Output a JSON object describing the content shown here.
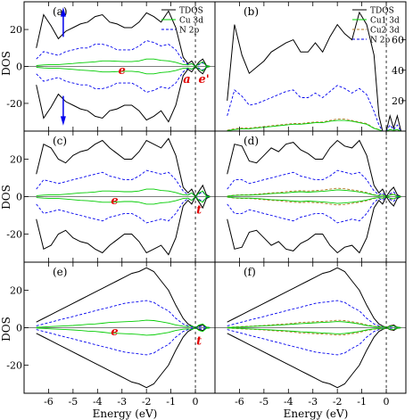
{
  "colors": {
    "tdos": "#000000",
    "cu3d": "#00cc00",
    "np": "#0000ee",
    "cu2": "#b07820",
    "arrow": "#0000ee",
    "label": "#e00000"
  },
  "xlabel": "Energy (eV)",
  "ylabel": "DOS",
  "x_ticks": [
    -6,
    -5,
    -4,
    -3,
    -2,
    -1,
    0
  ],
  "chart_data": [
    {
      "panel": "(a)",
      "type": "line",
      "ylim": [
        -35,
        35
      ],
      "y_ticks": [
        20,
        0,
        -20
      ],
      "y_tick_side": "left",
      "legend": [
        "TDOS",
        "Cu 3d",
        "N 2p"
      ],
      "legend_position": "top-right",
      "x": [
        -6.5,
        -6.2,
        -5.9,
        -5.6,
        -5.3,
        -5.0,
        -4.7,
        -4.4,
        -4.1,
        -3.8,
        -3.5,
        -3.2,
        -2.9,
        -2.6,
        -2.3,
        -2.0,
        -1.7,
        -1.4,
        -1.1,
        -0.8,
        -0.5,
        -0.3,
        -0.15,
        0.0,
        0.15,
        0.3,
        0.45,
        0.6
      ],
      "series": [
        {
          "name": "TDOS",
          "mirror": true,
          "values": [
            10,
            28,
            22,
            15,
            19,
            21,
            23,
            24,
            27,
            28,
            24,
            23,
            21,
            21,
            24,
            29,
            27,
            24,
            30,
            21,
            5,
            1.5,
            3,
            0,
            2.5,
            4,
            0.5,
            0
          ]
        },
        {
          "name": "N 2p",
          "mirror": true,
          "values": [
            4,
            8,
            7,
            6,
            8,
            9,
            10,
            10,
            12,
            12,
            11,
            9,
            9,
            9,
            11,
            14,
            13,
            11,
            12,
            9,
            3,
            1,
            1.5,
            0,
            1,
            2,
            0.3,
            0
          ]
        },
        {
          "name": "Cu 3d",
          "mirror": true,
          "values": [
            0.5,
            0.8,
            1,
            1,
            1.3,
            1.6,
            2,
            2.2,
            2.5,
            3,
            3,
            2.8,
            2.6,
            2.6,
            3,
            4,
            4,
            3.3,
            3,
            2.2,
            1,
            0.8,
            1.5,
            0,
            1.5,
            2.5,
            0.3,
            0
          ]
        }
      ],
      "annotations": [
        "e",
        "a",
        "e'"
      ]
    },
    {
      "panel": "(b)",
      "type": "line",
      "ylim": [
        0,
        85
      ],
      "y_ticks": [
        20,
        40,
        60
      ],
      "y_tick_side": "right",
      "legend": [
        "TDOS",
        "Cu1 3d",
        "Cu2 3d",
        "N 2p"
      ],
      "legend_position": "top-right",
      "x": [
        -6.5,
        -6.2,
        -5.9,
        -5.6,
        -5.3,
        -5.0,
        -4.7,
        -4.4,
        -4.1,
        -3.8,
        -3.5,
        -3.2,
        -2.9,
        -2.6,
        -2.3,
        -2.0,
        -1.7,
        -1.4,
        -1.1,
        -0.8,
        -0.5,
        -0.3,
        -0.15,
        0.0,
        0.15,
        0.3,
        0.45,
        0.6
      ],
      "series": [
        {
          "name": "TDOS",
          "mirror": false,
          "values": [
            20,
            70,
            50,
            38,
            42,
            46,
            52,
            55,
            58,
            60,
            52,
            52,
            58,
            52,
            62,
            70,
            64,
            60,
            78,
            70,
            50,
            10,
            0,
            0,
            10,
            2,
            10,
            0
          ]
        },
        {
          "name": "N 2p",
          "mirror": false,
          "values": [
            10,
            27,
            23,
            17,
            18,
            20,
            22,
            24,
            26,
            27,
            22,
            22,
            25,
            22,
            26,
            30,
            28,
            25,
            28,
            24,
            13,
            4,
            0,
            0,
            4,
            1,
            4,
            0
          ]
        },
        {
          "name": "Cu2 3d",
          "mirror": false,
          "values": [
            0.5,
            1.5,
            2,
            2,
            2.5,
            3,
            3.5,
            4,
            4.5,
            5,
            5,
            5.5,
            6,
            6,
            7,
            8,
            8,
            7,
            6,
            5,
            2,
            1,
            0,
            0,
            1,
            0.5,
            1,
            0
          ]
        },
        {
          "name": "Cu1 3d",
          "mirror": false,
          "values": [
            0.3,
            1,
            1.5,
            1.5,
            2,
            2.5,
            3,
            3.5,
            4,
            4.5,
            4.5,
            5,
            5.5,
            5.5,
            6.5,
            7,
            7,
            6.5,
            5.5,
            4.5,
            1.8,
            0.8,
            0,
            0,
            1,
            0.5,
            1,
            0
          ]
        }
      ]
    },
    {
      "panel": "(c)",
      "type": "line",
      "ylim": [
        -35,
        35
      ],
      "y_ticks": [
        20,
        0,
        -20
      ],
      "y_tick_side": "left",
      "x": [
        -6.5,
        -6.2,
        -5.9,
        -5.6,
        -5.3,
        -5.0,
        -4.7,
        -4.4,
        -4.1,
        -3.8,
        -3.5,
        -3.2,
        -2.9,
        -2.6,
        -2.3,
        -2.0,
        -1.7,
        -1.4,
        -1.1,
        -0.8,
        -0.5,
        -0.3,
        -0.15,
        0.0,
        0.15,
        0.3,
        0.45,
        0.6
      ],
      "series": [
        {
          "name": "TDOS",
          "mirror": true,
          "values": [
            12,
            28,
            26,
            20,
            18,
            22,
            24,
            25,
            28,
            30,
            26,
            23,
            20,
            20,
            24,
            30,
            28,
            26,
            31,
            22,
            5,
            2,
            4,
            0,
            3,
            6,
            1,
            0
          ]
        },
        {
          "name": "N 2p",
          "mirror": true,
          "values": [
            4,
            9,
            8,
            7,
            8,
            9,
            10,
            11,
            12,
            13,
            11,
            10,
            9,
            9,
            11,
            14,
            13,
            12,
            13,
            9,
            3,
            1,
            2,
            0,
            1.5,
            2.5,
            0.5,
            0
          ]
        },
        {
          "name": "Cu 3d",
          "mirror": true,
          "values": [
            0.5,
            0.8,
            1,
            1,
            1.3,
            1.6,
            2,
            2.2,
            2.5,
            3,
            3,
            2.8,
            2.6,
            2.6,
            3,
            4,
            4,
            3.3,
            3,
            2.2,
            1,
            0.8,
            2,
            0,
            2,
            3,
            0.3,
            0
          ]
        }
      ],
      "annotations": [
        "e",
        "t"
      ]
    },
    {
      "panel": "(d)",
      "type": "line",
      "ylim": [
        -35,
        35
      ],
      "x": [
        -6.5,
        -6.2,
        -5.9,
        -5.6,
        -5.3,
        -5.0,
        -4.7,
        -4.4,
        -4.1,
        -3.8,
        -3.5,
        -3.2,
        -2.9,
        -2.6,
        -2.3,
        -2.0,
        -1.7,
        -1.4,
        -1.1,
        -0.8,
        -0.5,
        -0.3,
        -0.15,
        0.0,
        0.15,
        0.3,
        0.45,
        0.6
      ],
      "series": [
        {
          "name": "TDOS",
          "mirror": true,
          "values": [
            12,
            28,
            27,
            19,
            18,
            22,
            26,
            24,
            28,
            29,
            25,
            23,
            20,
            20,
            26,
            30,
            27,
            26,
            30,
            22,
            6,
            2,
            4,
            0,
            3,
            5,
            1,
            0
          ]
        },
        {
          "name": "N 2p",
          "mirror": true,
          "values": [
            4,
            9,
            9,
            7,
            8,
            9,
            10,
            11,
            12,
            13,
            11,
            10,
            9,
            9,
            11,
            14,
            13,
            12,
            13,
            9,
            3,
            1,
            2,
            0,
            1.5,
            2.5,
            0.5,
            0
          ]
        },
        {
          "name": "Cu2 3d",
          "mirror": true,
          "values": [
            0.3,
            0.8,
            1,
            1,
            1.3,
            1.6,
            2,
            2.2,
            2.6,
            3,
            3.2,
            3,
            3.2,
            3.5,
            4,
            4.5,
            4.2,
            3.6,
            3,
            2.2,
            1,
            0.6,
            1,
            0,
            1,
            1.5,
            0.3,
            0
          ]
        },
        {
          "name": "Cu1 3d",
          "mirror": true,
          "values": [
            0.2,
            0.6,
            0.8,
            0.8,
            1,
            1.3,
            1.6,
            1.8,
            2,
            2.4,
            2.6,
            2.4,
            2.6,
            2.8,
            3.2,
            3.6,
            3.4,
            3,
            2.5,
            1.8,
            0.8,
            0.5,
            0.8,
            0,
            0.8,
            1.2,
            0.2,
            0
          ]
        }
      ]
    },
    {
      "panel": "(e)",
      "type": "line",
      "ylim": [
        -35,
        35
      ],
      "y_ticks": [
        20,
        0,
        -20
      ],
      "y_tick_side": "left",
      "x": [
        -6.5,
        -6.2,
        -5.9,
        -5.6,
        -5.3,
        -5.0,
        -4.7,
        -4.4,
        -4.1,
        -3.8,
        -3.5,
        -3.2,
        -2.9,
        -2.6,
        -2.3,
        -2.0,
        -1.7,
        -1.4,
        -1.1,
        -0.8,
        -0.5,
        -0.3,
        -0.15,
        0.0,
        0.15,
        0.3,
        0.45,
        0.6
      ],
      "series": [
        {
          "name": "TDOS",
          "mirror": true,
          "values": [
            3,
            5,
            7,
            9,
            11,
            13,
            15,
            17,
            19,
            21,
            23,
            25,
            27,
            29,
            30,
            32,
            30,
            25,
            20,
            12,
            5,
            2,
            1,
            0,
            1,
            1.5,
            0.3,
            0
          ]
        },
        {
          "name": "N 2p",
          "mirror": true,
          "values": [
            1,
            2,
            3,
            4,
            5,
            6,
            7,
            8,
            9,
            10,
            11,
            12,
            13,
            13.5,
            14,
            14.5,
            13.5,
            11,
            9,
            5,
            2,
            1,
            0.5,
            0,
            0.5,
            0.8,
            0.2,
            0
          ]
        },
        {
          "name": "Cu 3d",
          "mirror": true,
          "values": [
            0.2,
            0.4,
            0.6,
            0.8,
            1,
            1.2,
            1.5,
            1.8,
            2,
            2.4,
            2.8,
            3,
            3.2,
            3.4,
            3.6,
            4,
            3.8,
            3.2,
            2.5,
            1.5,
            0.8,
            0.6,
            1,
            0,
            1.5,
            2,
            0.3,
            0
          ]
        }
      ],
      "annotations": [
        "e",
        "t"
      ]
    },
    {
      "panel": "(f)",
      "type": "line",
      "ylim": [
        -35,
        35
      ],
      "x": [
        -6.5,
        -6.2,
        -5.9,
        -5.6,
        -5.3,
        -5.0,
        -4.7,
        -4.4,
        -4.1,
        -3.8,
        -3.5,
        -3.2,
        -2.9,
        -2.6,
        -2.3,
        -2.0,
        -1.7,
        -1.4,
        -1.1,
        -0.8,
        -0.5,
        -0.3,
        -0.15,
        0.0,
        0.15,
        0.3,
        0.45,
        0.6
      ],
      "series": [
        {
          "name": "TDOS",
          "mirror": true,
          "values": [
            3,
            5,
            7,
            9,
            11,
            13,
            15,
            17,
            19,
            21,
            23,
            25,
            27,
            29,
            30,
            32,
            30,
            25,
            20,
            12,
            5,
            2,
            1,
            0,
            1,
            1.5,
            0.3,
            0
          ]
        },
        {
          "name": "N 2p",
          "mirror": true,
          "values": [
            1,
            2,
            3,
            4,
            5,
            6,
            7,
            8,
            9,
            10,
            11,
            12,
            13,
            13.5,
            14,
            14.5,
            13.5,
            11,
            9,
            5,
            2,
            1,
            0.5,
            0,
            0.5,
            0.8,
            0.2,
            0
          ]
        },
        {
          "name": "Cu2 3d",
          "mirror": true,
          "values": [
            0.2,
            0.4,
            0.6,
            0.8,
            1,
            1.2,
            1.5,
            1.8,
            2,
            2.4,
            2.8,
            3,
            3.2,
            3.4,
            3.6,
            4,
            3.8,
            3.2,
            2.5,
            1.5,
            0.8,
            0.6,
            0.8,
            0,
            1,
            1.2,
            0.3,
            0
          ]
        },
        {
          "name": "Cu1 3d",
          "mirror": true,
          "values": [
            0.1,
            0.3,
            0.4,
            0.6,
            0.8,
            1,
            1.2,
            1.4,
            1.6,
            1.9,
            2.2,
            2.4,
            2.6,
            2.8,
            3,
            3.3,
            3.1,
            2.6,
            2,
            1.2,
            0.6,
            0.4,
            0.6,
            0,
            0.8,
            1,
            0.2,
            0
          ]
        }
      ]
    }
  ]
}
